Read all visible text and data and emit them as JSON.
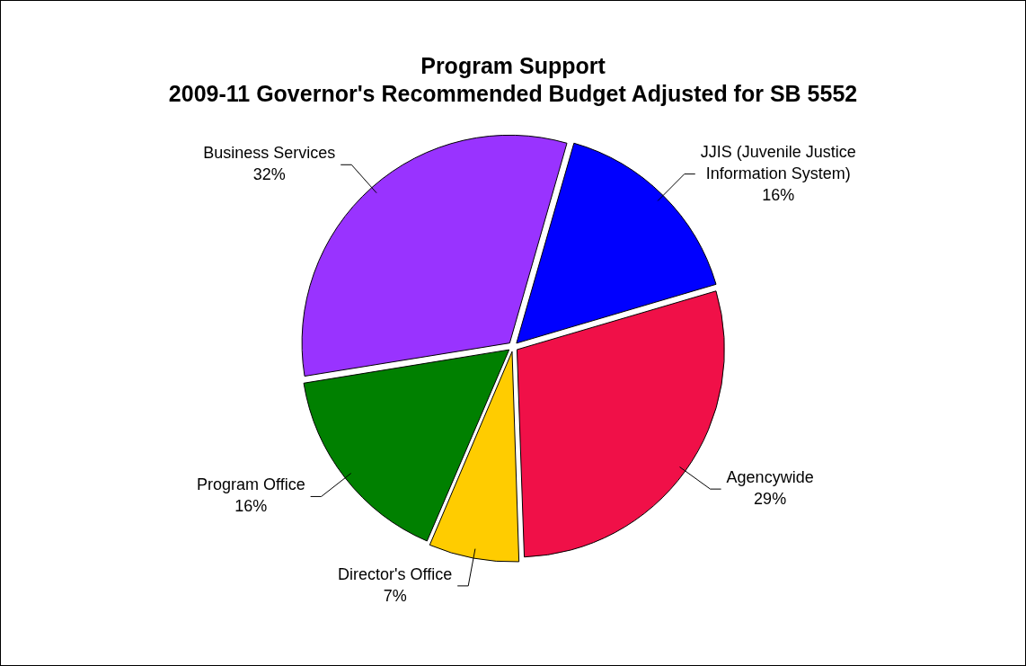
{
  "chart_data": {
    "type": "pie",
    "title": "Program Support",
    "subtitle": "2009-11 Governor's Recommended Budget Adjusted for SB 5552",
    "categories": [
      "JJIS (Juvenile Justice Information System)",
      "Agencywide",
      "Director's Office",
      "Program Office",
      "Business Services"
    ],
    "values": [
      16,
      29,
      7,
      16,
      32
    ],
    "value_labels": [
      "16%",
      "29%",
      "7%",
      "16%",
      "32%"
    ],
    "colors": [
      "#0000ff",
      "#f01048",
      "#ffcc00",
      "#008000",
      "#9933ff"
    ],
    "legend": false
  }
}
